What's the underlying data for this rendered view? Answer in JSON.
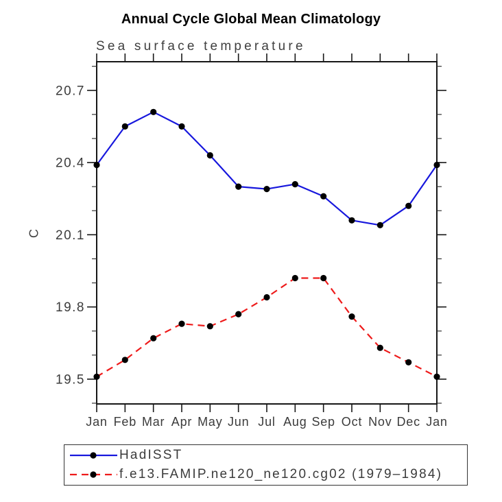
{
  "header": {
    "title": "Annual Cycle Global Mean Climatology",
    "subtitle": "Sea surface temperature"
  },
  "chart_data": {
    "type": "line",
    "title": "Annual Cycle Global Mean Climatology",
    "subtitle": "Sea surface temperature",
    "xlabel": "",
    "ylabel": "C",
    "categories": [
      "Jan",
      "Feb",
      "Mar",
      "Apr",
      "May",
      "Jun",
      "Jul",
      "Aug",
      "Sep",
      "Oct",
      "Nov",
      "Dec",
      "Jan"
    ],
    "ylim": [
      19.397,
      20.819
    ],
    "yticks_major": [
      19.5,
      19.8,
      20.1,
      20.4,
      20.7
    ],
    "ytick_minor_step": 0.1,
    "ytick_minor_start": 19.4,
    "ytick_minor_end": 20.8,
    "grid": false,
    "legend_position": "bottom-left-box",
    "series": [
      {
        "name": "HadISST",
        "color": "#1717dd",
        "style": "solid",
        "marker": "circle",
        "marker_color": "#000000",
        "values": [
          20.39,
          20.55,
          20.61,
          20.55,
          20.43,
          20.3,
          20.29,
          20.31,
          20.26,
          20.16,
          20.14,
          20.22,
          20.39
        ]
      },
      {
        "name": "f.e13.FAMIP.ne120_ne120.cg02 (1979–1984)",
        "color": "#ee1b1b",
        "style": "dashed",
        "marker": "circle",
        "marker_color": "#000000",
        "values": [
          19.51,
          19.58,
          19.67,
          19.73,
          19.72,
          19.77,
          19.84,
          19.92,
          19.92,
          19.76,
          19.63,
          19.57,
          19.51
        ]
      }
    ]
  }
}
